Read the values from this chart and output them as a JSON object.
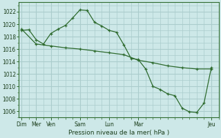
{
  "xlabel": "Pression niveau de la mer( hPa )",
  "background_color": "#cde8e8",
  "grid_color": "#aacccc",
  "line_color": "#2d6a2d",
  "ylim": [
    1005,
    1023.5
  ],
  "yticks": [
    1006,
    1008,
    1010,
    1012,
    1014,
    1016,
    1018,
    1020,
    1022
  ],
  "day_positions": [
    0,
    1,
    2,
    4,
    6,
    8,
    13
  ],
  "day_labels": [
    "Dim",
    "Mer",
    "Ven",
    "Sam",
    "Lun",
    "Mar",
    "Jeu"
  ],
  "xlim": [
    -0.2,
    13.5
  ],
  "line1_x": [
    0,
    0.5,
    1,
    1.5,
    2,
    2.5,
    3,
    3.5,
    4,
    4.5,
    5,
    5.5,
    6,
    6.5,
    7,
    7.5,
    8,
    8.5,
    9,
    9.5,
    10,
    10.5,
    11,
    11.5,
    12,
    12.5,
    13
  ],
  "line1_y": [
    1019.0,
    1019.1,
    1017.5,
    1016.8,
    1018.5,
    1019.2,
    1019.8,
    1021.0,
    1022.3,
    1022.2,
    1020.3,
    1019.7,
    1019.0,
    1018.7,
    1016.7,
    1014.5,
    1014.3,
    1012.8,
    1010.0,
    1009.5,
    1008.8,
    1008.5,
    1006.5,
    1005.9,
    1005.8,
    1007.3,
    1013.0
  ],
  "line2_x": [
    0,
    1,
    2,
    3,
    4,
    5,
    6,
    7,
    8,
    9,
    10,
    11,
    12,
    13
  ],
  "line2_y": [
    1019.2,
    1016.8,
    1016.5,
    1016.2,
    1016.0,
    1015.7,
    1015.4,
    1015.1,
    1014.2,
    1013.8,
    1013.3,
    1013.0,
    1012.8,
    1012.8
  ]
}
